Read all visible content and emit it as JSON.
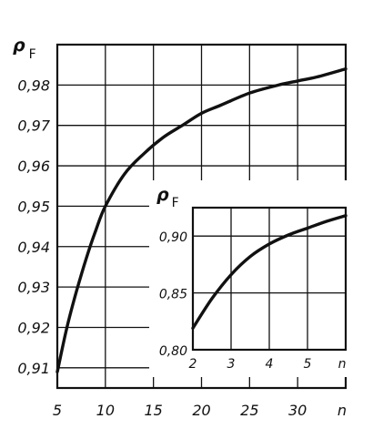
{
  "chart_data": [
    {
      "type": "line",
      "title": "",
      "ylabel": "ρ",
      "ylabel_sub": "F",
      "xlabel": "n",
      "x_ticks": [
        5,
        10,
        15,
        20,
        25,
        30
      ],
      "x_tick_labels": [
        "5",
        "10",
        "15",
        "20",
        "25",
        "30"
      ],
      "x_end_label": "n",
      "xlim": [
        5,
        35
      ],
      "y_ticks": [
        0.91,
        0.92,
        0.93,
        0.94,
        0.95,
        0.96,
        0.97,
        0.98
      ],
      "y_tick_labels": [
        "0,91",
        "0,92",
        "0,93",
        "0,94",
        "0,95",
        "0,96",
        "0,97",
        "0,98"
      ],
      "ylim": [
        0.905,
        0.99
      ],
      "grid": true,
      "series": [
        {
          "x": [
            5,
            6,
            7,
            8,
            9,
            10,
            12,
            14,
            16,
            18,
            20,
            22,
            25,
            28,
            30,
            32,
            35
          ],
          "y": [
            0.909,
            0.92,
            0.929,
            0.937,
            0.944,
            0.95,
            0.958,
            0.963,
            0.967,
            0.97,
            0.973,
            0.975,
            0.978,
            0.98,
            0.981,
            0.982,
            0.984
          ]
        }
      ]
    },
    {
      "type": "line",
      "title": "",
      "ylabel": "ρ",
      "ylabel_sub": "F",
      "xlabel": "n",
      "x_ticks": [
        2,
        3,
        4,
        5
      ],
      "x_tick_labels": [
        "2",
        "3",
        "4",
        "5"
      ],
      "x_end_label": "n",
      "xlim": [
        2,
        6
      ],
      "y_ticks": [
        0.8,
        0.85,
        0.9
      ],
      "y_tick_labels": [
        "0,80",
        "0,85",
        "0,90"
      ],
      "ylim": [
        0.8,
        0.925
      ],
      "grid": true,
      "series": [
        {
          "x": [
            2,
            2.5,
            3,
            3.5,
            4,
            4.5,
            5,
            5.5,
            6
          ],
          "y": [
            0.819,
            0.845,
            0.866,
            0.882,
            0.893,
            0.901,
            0.907,
            0.913,
            0.918
          ]
        }
      ]
    }
  ]
}
